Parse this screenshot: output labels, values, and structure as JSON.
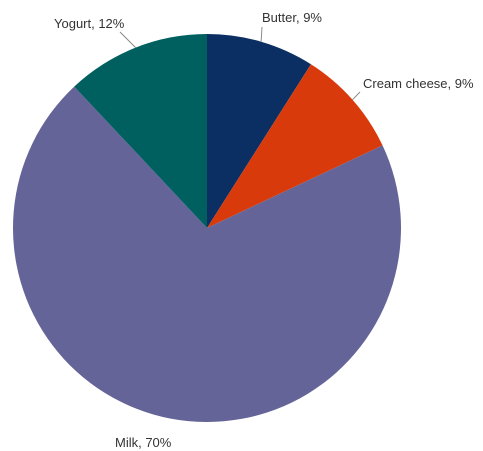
{
  "chart_data": {
    "type": "pie",
    "start_angle_deg": 0,
    "direction": "clockwise",
    "slices": [
      {
        "name": "Butter",
        "value": 9,
        "label": "Butter, 9%",
        "color": "#0c2f63"
      },
      {
        "name": "Cream cheese",
        "value": 9,
        "label": "Cream cheese, 9%",
        "color": "#d93a0b"
      },
      {
        "name": "Milk",
        "value": 70,
        "label": "Milk, 70%",
        "color": "#646498"
      },
      {
        "name": "Yogurt",
        "value": 12,
        "label": "Yogurt, 12%",
        "color": "#006060"
      }
    ]
  }
}
